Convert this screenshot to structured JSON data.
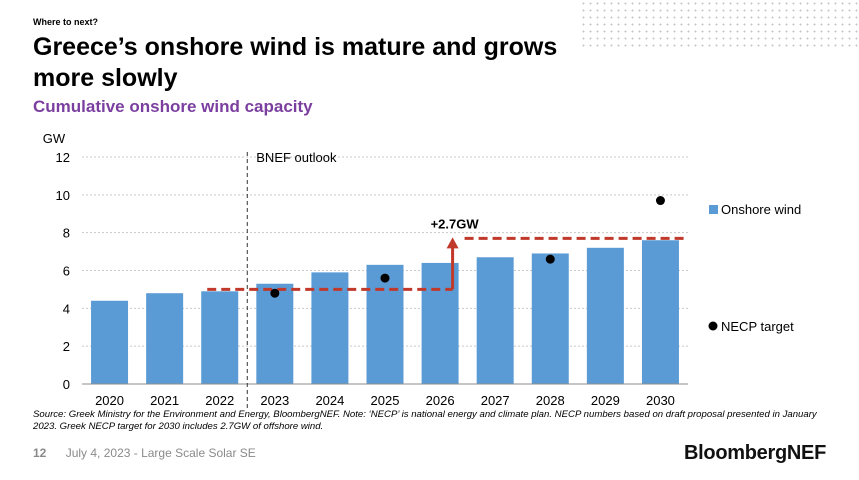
{
  "slide": {
    "kicker": "Where to next?",
    "title": "Greece’s onshore wind is mature and grows more slowly",
    "subtitle": "Cumulative onshore wind capacity",
    "source": "Source: Greek Ministry for the Environment and Energy, BloombergNEF. Note: ‘NECP’ is national energy and climate plan. NECP numbers based on draft proposal presented in January 2023. Greek NECP target for 2030 includes 2.7GW of offshore wind.",
    "page_number": "12",
    "footer_text": "July 4, 2023 - Large Scale Solar SE",
    "brand": "BloombergNEF"
  },
  "chart_data": {
    "type": "bar",
    "title": "Cumulative onshore wind capacity",
    "ylabel": "GW",
    "xlabel": "",
    "ylim": [
      0,
      12
    ],
    "yticks": [
      0,
      2,
      4,
      6,
      8,
      10,
      12
    ],
    "grid": true,
    "legend_position": "right",
    "categories": [
      "2020",
      "2021",
      "2022",
      "2023",
      "2024",
      "2025",
      "2026",
      "2027",
      "2028",
      "2029",
      "2030"
    ],
    "series": [
      {
        "name": "Onshore wind",
        "kind": "bar",
        "color": "#5b9bd5",
        "values": [
          4.4,
          4.8,
          4.9,
          5.3,
          5.9,
          6.3,
          6.4,
          6.7,
          6.9,
          7.2,
          7.6
        ]
      },
      {
        "name": "NECP target",
        "kind": "scatter",
        "color": "#000000",
        "points": [
          [
            "2023",
            4.8
          ],
          [
            "2025",
            5.6
          ],
          [
            "2028",
            6.6
          ],
          [
            "2030",
            9.7
          ]
        ]
      }
    ],
    "annotations": {
      "outlook_label": "BNEF outlook",
      "outlook_divider_between": [
        "2022",
        "2023"
      ],
      "step_label": "+2.7GW",
      "step_color": "#c0392b",
      "step_start_category": "2022",
      "step_jump_category": "2026",
      "step_end_category": "2030",
      "step_low": 5.0,
      "step_high": 7.7
    }
  }
}
